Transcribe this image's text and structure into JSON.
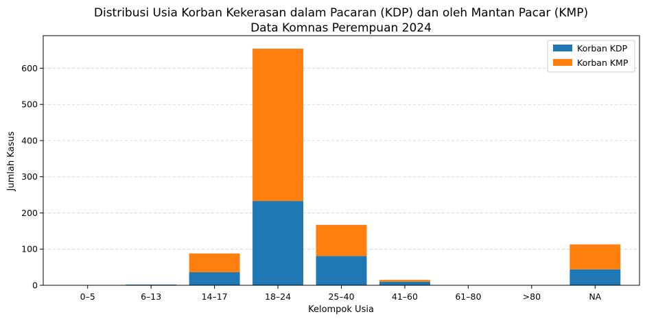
{
  "chart_data": {
    "type": "bar",
    "stacked": true,
    "title": "Distribusi Usia Korban Kekerasan dalam Pacaran (KDP) dan oleh Mantan Pacar (KMP)",
    "subtitle": "Data Komnas Perempuan 2024",
    "xlabel": "Kelompok Usia",
    "ylabel": "Jumlah Kasus",
    "categories": [
      "0–5",
      "6–13",
      "14–17",
      "18–24",
      "25–40",
      "41–60",
      "61–80",
      ">80",
      "NA"
    ],
    "series": [
      {
        "name": "Korban KDP",
        "color": "#1f77b4",
        "values": [
          0,
          2,
          36,
          233,
          81,
          10,
          0,
          0,
          44
        ]
      },
      {
        "name": "Korban KMP",
        "color": "#ff7f0e",
        "values": [
          0,
          0,
          52,
          421,
          86,
          5,
          0,
          0,
          69
        ]
      }
    ],
    "ylim": [
      0,
      690
    ],
    "yticks": [
      0,
      100,
      200,
      300,
      400,
      500,
      600
    ],
    "grid": "horizontal-dashed",
    "legend_position": "top-right"
  }
}
